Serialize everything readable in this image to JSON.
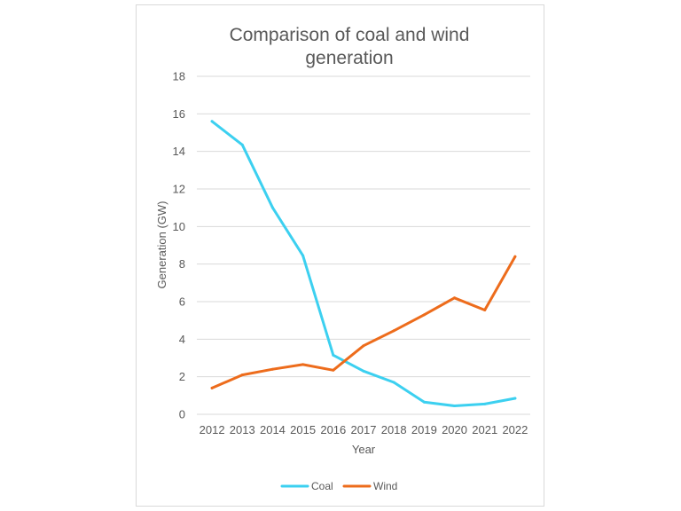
{
  "chart_data": {
    "type": "line",
    "title_lines": [
      "Comparison of coal and wind",
      "generation"
    ],
    "xlabel": "Year",
    "ylabel": "Generation (GW)",
    "x": [
      "2012",
      "2013",
      "2014",
      "2015",
      "2016",
      "2017",
      "2018",
      "2019",
      "2020",
      "2021",
      "2022"
    ],
    "ylim": [
      0,
      18
    ],
    "yticks": [
      "0",
      "2",
      "4",
      "6",
      "8",
      "10",
      "12",
      "14",
      "16",
      "18"
    ],
    "grid": "horizontal",
    "legend_position": "bottom",
    "series": [
      {
        "name": "Coal",
        "color": "#3cd0f0",
        "values": [
          15.6,
          14.35,
          11.0,
          8.45,
          3.15,
          2.3,
          1.7,
          0.65,
          0.45,
          0.55,
          0.85
        ]
      },
      {
        "name": "Wind",
        "color": "#ed6c1c",
        "values": [
          1.4,
          2.1,
          2.4,
          2.65,
          2.35,
          3.65,
          4.45,
          5.3,
          6.2,
          5.55,
          8.4
        ]
      }
    ]
  }
}
